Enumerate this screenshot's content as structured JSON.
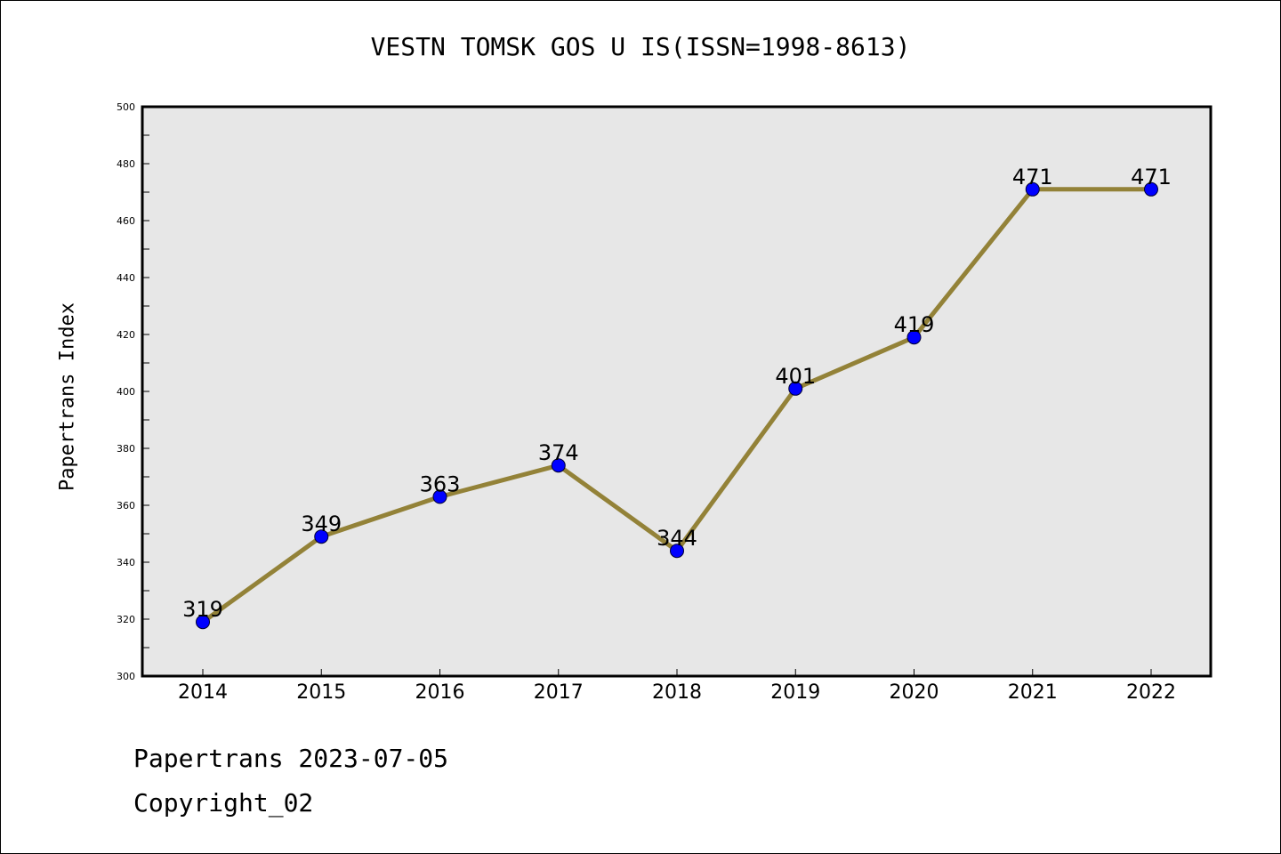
{
  "chart_data": {
    "type": "line",
    "title": "VESTN TOMSK GOS U IS(ISSN=1998-8613)",
    "xlabel": "",
    "ylabel": "Papertrans Index",
    "categories": [
      "2014",
      "2015",
      "2016",
      "2017",
      "2018",
      "2019",
      "2020",
      "2021",
      "2022"
    ],
    "series": [
      {
        "values": [
          319,
          349,
          363,
          374,
          344,
          401,
          419,
          471,
          471
        ]
      }
    ],
    "data_labels": [
      "319",
      "349",
      "363",
      "374",
      "344",
      "401",
      "419",
      "471",
      "471"
    ],
    "ylim": [
      300,
      500
    ],
    "yticks": [
      300,
      320,
      340,
      360,
      380,
      400,
      420,
      440,
      460,
      480,
      500
    ],
    "grid": false,
    "legend": "none",
    "line_color": "#938238",
    "marker_color": "#0000ff",
    "plot_background": "#e7e7e7"
  },
  "footer": {
    "date_line": "Papertrans 2023-07-05",
    "copyright_line": "Copyright_02"
  }
}
